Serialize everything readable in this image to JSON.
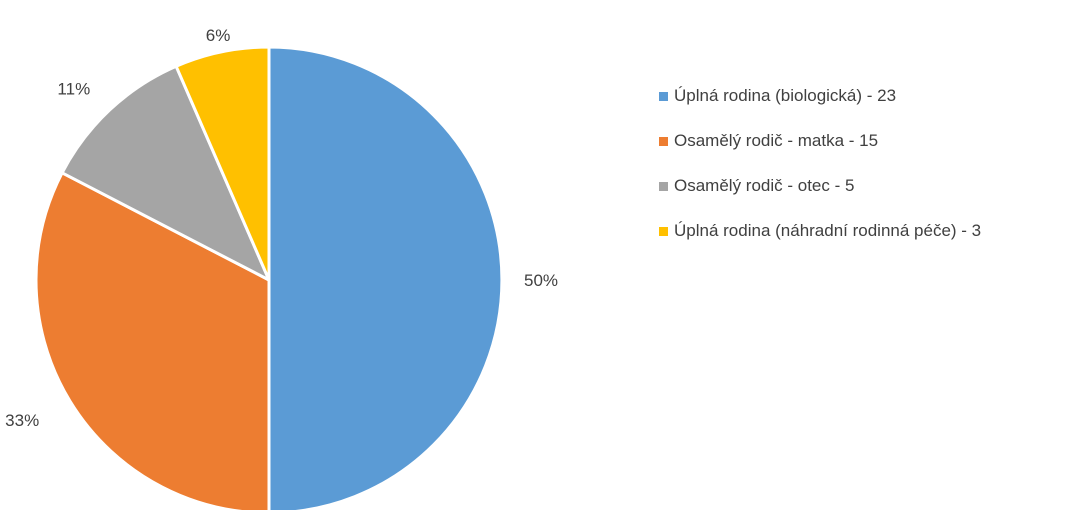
{
  "chart_data": {
    "type": "pie",
    "title": "",
    "categories": [
      "Úplná rodina (biologická)",
      "Osamělý rodič - matka",
      "Osamělý rodič - otec",
      "Úplná rodina (náhradní rodinná péče)"
    ],
    "values": [
      23,
      15,
      5,
      3
    ],
    "percent_labels": [
      "50%",
      "33%",
      "11%",
      "6%"
    ],
    "legend_labels": [
      "Úplná rodina (biologická) - 23",
      "Osamělý rodič - matka - 15",
      "Osamělý rodič - otec - 5",
      "Úplná rodina (náhradní rodinná péče) - 3"
    ],
    "colors": [
      "#5B9BD5",
      "#ED7D31",
      "#A5A5A5",
      "#FFC000"
    ],
    "legend_position": "right",
    "start_angle": "top",
    "direction": "clockwise"
  }
}
